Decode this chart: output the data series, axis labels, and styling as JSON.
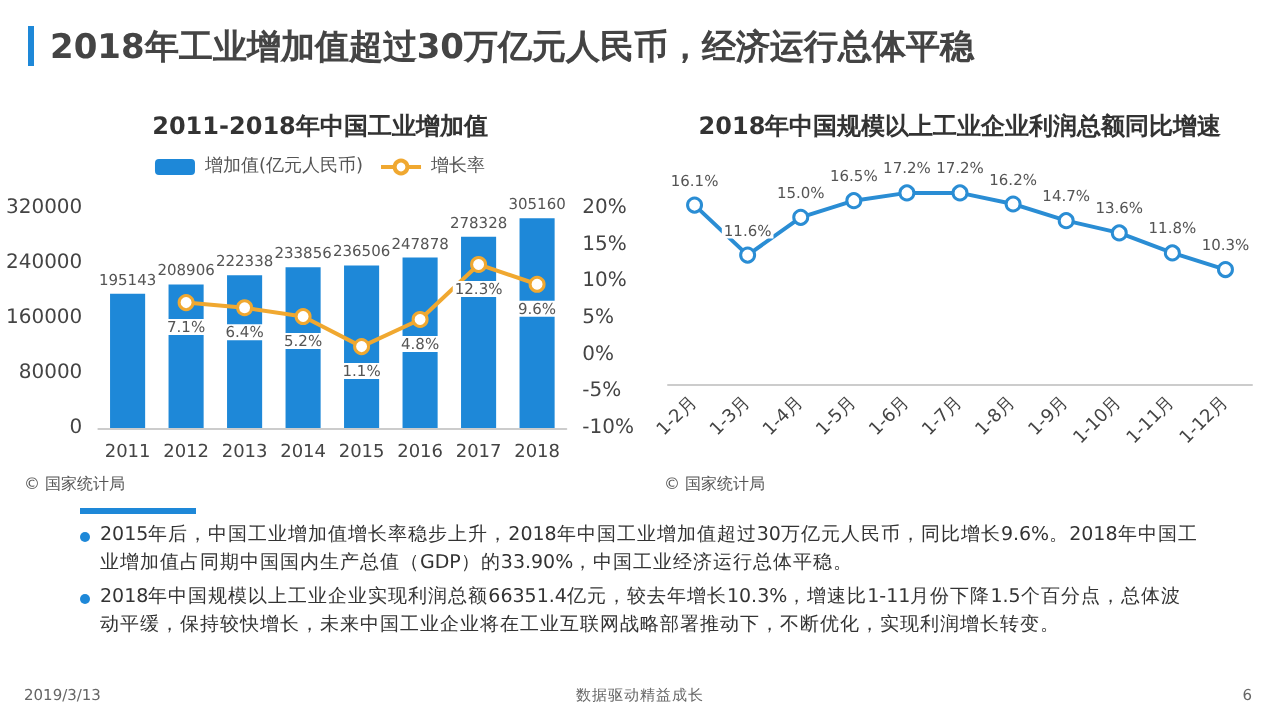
{
  "chart_data": [
    {
      "type": "other",
      "title": "2018年工业增加值超过30万亿元人民币，经济运行总体平稳"
    },
    {
      "type": "bar",
      "title": "2011-2018年中国工业增加值",
      "categories": [
        "2011",
        "2012",
        "2013",
        "2014",
        "2015",
        "2016",
        "2017",
        "2018"
      ],
      "series": [
        {
          "name": "增加值(亿元人民币)",
          "color": "#1e88d8",
          "values": [
            195143,
            208906,
            222338,
            233856,
            236506,
            247878,
            278328,
            305160
          ]
        },
        {
          "name": "增长率",
          "type": "line",
          "axis": "y2",
          "color": "#f0a830",
          "values": [
            null,
            7.1,
            6.4,
            5.2,
            1.1,
            4.8,
            12.3,
            9.6
          ],
          "value_labels": [
            null,
            "7.1%",
            "6.4%",
            "5.2%",
            "1.1%",
            "4.8%",
            "12.3%",
            "9.6%"
          ]
        }
      ],
      "ylim": [
        0,
        320000
      ],
      "yticks": [
        0,
        80000,
        160000,
        240000,
        320000
      ],
      "y2lim": [
        -10,
        20
      ],
      "y2ticks": [
        {
          "value": -10,
          "label": "-10%"
        },
        {
          "value": -5,
          "label": "-5%"
        },
        {
          "value": 0,
          "label": "0%"
        },
        {
          "value": 5,
          "label": "5%"
        },
        {
          "value": 10,
          "label": "10%"
        },
        {
          "value": 15,
          "label": "15%"
        },
        {
          "value": 20,
          "label": "20%"
        }
      ],
      "data_labels": true,
      "legend": "top",
      "marker": "circle",
      "annotations": [
        "© 国家统计局"
      ]
    },
    {
      "type": "line",
      "title": "2018年中国规模以上工业企业利润总额同比增速",
      "categories": [
        "1-2月",
        "1-3月",
        "1-4月",
        "1-5月",
        "1-6月",
        "1-7月",
        "1-8月",
        "1-9月",
        "1-10月",
        "1-11月",
        "1-12月"
      ],
      "series": [
        {
          "color": "#2a8dd4",
          "values": [
            16.1,
            11.6,
            15.0,
            16.5,
            17.2,
            17.2,
            16.2,
            14.7,
            13.6,
            11.8,
            10.3
          ],
          "value_labels": [
            "16.1%",
            "11.6%",
            "15.0%",
            "16.5%",
            "17.2%",
            "17.2%",
            "16.2%",
            "14.7%",
            "13.6%",
            "11.8%",
            "10.3%"
          ]
        }
      ],
      "marker": "circle",
      "annotations": [
        "© 国家统计局"
      ]
    },
    {
      "type": "other",
      "annotations": [
        "2015年后，中国工业增加值增长率稳步上升，2018年中国工业增加值超过30万亿元人民币，同比增长9.6%。2018年中国工业增加值占同期中国国内生产总值（GDP）的33.90%，中国工业经济运行总体平稳。",
        "2018年中国规模以上工业企业实现利润总额66351.4亿元，较去年增长10.3%，增速比1-11月份下降1.5个百分点，总体波动平缓，保持较快增长，未来中国工业企业将在工业互联网战略部署推动下，不断优化，实现利润增长转变。",
        "2019/3/13",
        "数据驱动精益成长",
        "6"
      ]
    }
  ]
}
